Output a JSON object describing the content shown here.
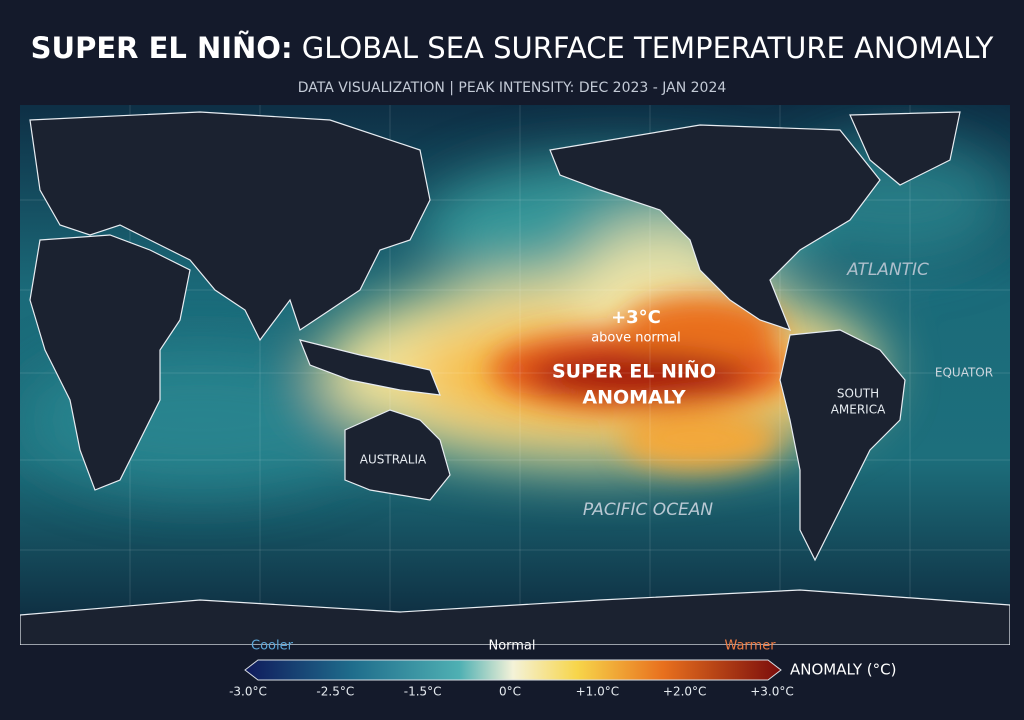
{
  "header": {
    "title_bold": "SUPER EL NIÑO:",
    "title_rest": "GLOBAL SEA SURFACE TEMPERATURE ANOMALY",
    "subtitle": "DATA VISUALIZATION | PEAK INTENSITY: DEC 2023 - JAN 2024"
  },
  "map": {
    "labels": {
      "atlantic": "ATLANTIC",
      "equator": "EQUATOR",
      "south_america": [
        "SOUTH",
        "AMERICA"
      ],
      "australia": "AUSTRALIA",
      "pacific": "PACIFIC OCEAN"
    },
    "callout": {
      "value": "+3°C",
      "note": "above normal",
      "name": [
        "SUPER EL NIÑO",
        "ANOMALY"
      ]
    }
  },
  "legend": {
    "cooler": "Cooler",
    "normal": "Normal",
    "warmer": "Warmer",
    "title": "ANOMALY (°C)",
    "ticks": [
      "-3.0°C",
      "-2.5°C",
      "-1.5°C",
      "0°C",
      "+1.0°C",
      "+2.0°C",
      "+3.0°C"
    ]
  }
}
